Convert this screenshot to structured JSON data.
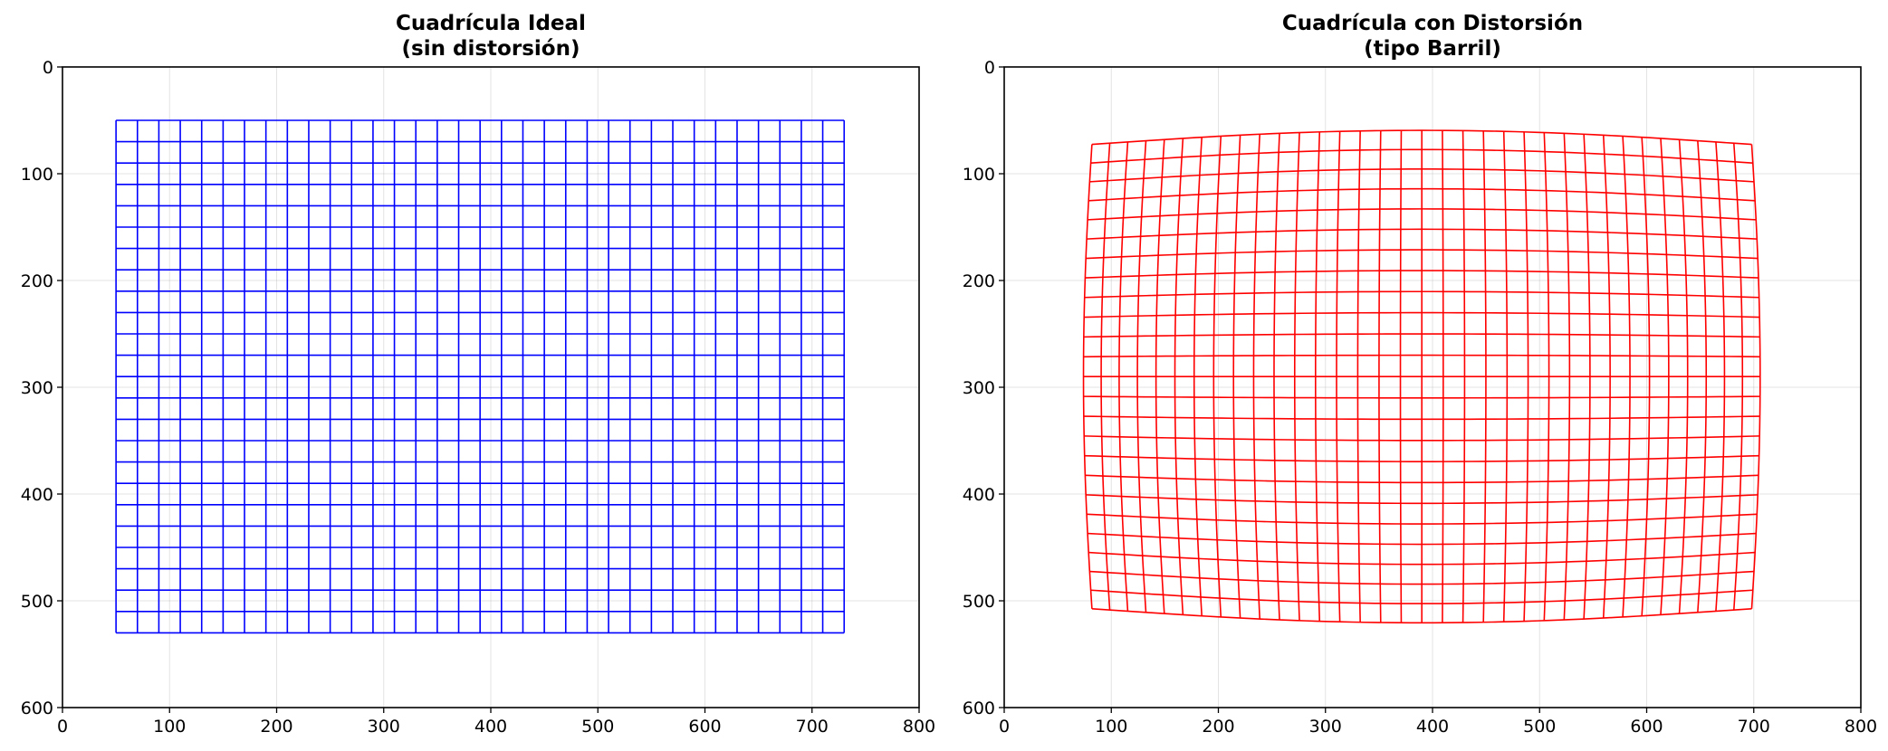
{
  "chart_data": [
    {
      "type": "line",
      "title_lines": [
        "Cuadrícula Ideal",
        "(sin distorsión)"
      ],
      "xlim": [
        0,
        800
      ],
      "ylim": [
        0,
        600
      ],
      "y_inverted": true,
      "xticks": [
        0,
        100,
        200,
        300,
        400,
        500,
        600,
        700,
        800
      ],
      "yticks": [
        0,
        100,
        200,
        300,
        400,
        500,
        600
      ],
      "grid": true,
      "grid_lines": {
        "x_start": 50,
        "x_end": 730,
        "x_step": 20,
        "y_start": 50,
        "y_end": 530,
        "y_step": 20,
        "distortion": "none"
      },
      "color": "#0000ff"
    },
    {
      "type": "line",
      "title_lines": [
        "Cuadrícula con Distorsión",
        "(tipo Barril)"
      ],
      "xlim": [
        0,
        800
      ],
      "ylim": [
        0,
        600
      ],
      "y_inverted": true,
      "xticks": [
        0,
        100,
        200,
        300,
        400,
        500,
        600,
        700,
        800
      ],
      "yticks": [
        0,
        100,
        200,
        300,
        400,
        500,
        600
      ],
      "grid": true,
      "grid_lines": {
        "x_start": 50,
        "x_end": 730,
        "x_step": 20,
        "y_start": 50,
        "y_end": 530,
        "y_step": 20,
        "distortion": "barrel",
        "center": [
          390,
          290
        ],
        "k1": -7.5e-07,
        "k2": 1.2e-12
      },
      "color": "#ff0000"
    }
  ]
}
